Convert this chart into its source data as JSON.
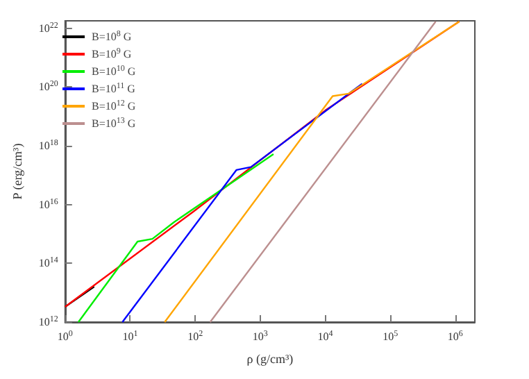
{
  "chart_data": {
    "type": "line",
    "xlabel": "ρ (g/cm³)",
    "ylabel": "P (erg/cm³)",
    "log": "xy",
    "grid": false,
    "legend": "top left",
    "marker": "none",
    "line_style": "solid",
    "xlim": [
      1,
      2000000
    ],
    "ylim": [
      1000000000000.0,
      1.8e+22
    ],
    "xticks": [
      {
        "value": 1,
        "label": "10$^{0}$"
      },
      {
        "value": 10,
        "label": "10$^{1}$"
      },
      {
        "value": 100,
        "label": "10$^{2}$"
      },
      {
        "value": 1000,
        "label": "10$^{3}$"
      },
      {
        "value": 10000,
        "label": "10$^{4}$"
      },
      {
        "value": 100000,
        "label": "10$^{5}$"
      },
      {
        "value": 1000000,
        "label": "10$^{6}$"
      }
    ],
    "yticks": [
      {
        "value": 1000000000000.0,
        "label": "10$^{12}$"
      },
      {
        "value": 100000000000000.0,
        "label": "10$^{14}$"
      },
      {
        "value": 1e+16,
        "label": "10$^{16}$"
      },
      {
        "value": 1e+18,
        "label": "10$^{18}$"
      },
      {
        "value": 1e+20,
        "label": "10$^{20}$"
      },
      {
        "value": 1e+22,
        "label": "10$^{22}$"
      }
    ],
    "series": [
      {
        "name": "B=10$^{8}$ G",
        "color": "#000000",
        "x": [
          1,
          2.8
        ],
        "values": [
          3300000000000.0,
          16000000000000.0
        ]
      },
      {
        "name": "B=10$^{9}$ G",
        "color": "#ff0000",
        "x": [
          1,
          95,
          10000,
          1150000
        ],
        "values": [
          3300000000000.0,
          5900000000000000.0,
          1.6e+19,
          1.7e+22
        ]
      },
      {
        "name": "B=10$^{10}$ G",
        "color": "#00ee00",
        "x": [
          1.6,
          13,
          22,
          47,
          1600
        ],
        "values": [
          1000000000000.0,
          550000000000000.0,
          680000000000000.0,
          2500000000000000.0,
          5.2e+17
        ]
      },
      {
        "name": "B=10$^{11}$ G",
        "color": "#0000ff",
        "x": [
          7.6,
          430,
          720,
          37000
        ],
        "values": [
          1000000000000.0,
          1.5e+17,
          1.9e+17,
          1.3e+20
        ]
      },
      {
        "name": "B=10$^{12}$ G",
        "color": "#ffa500",
        "x": [
          34,
          13000,
          23000,
          1150000
        ],
        "values": [
          1000000000000.0,
          4.9e+19,
          6e+19,
          1.7e+22
        ]
      },
      {
        "name": "B=10$^{13}$ G",
        "color": "#bc8f8f",
        "x": [
          170,
          500000
        ],
        "values": [
          1000000000000.0,
          1.7e+22
        ]
      }
    ]
  }
}
